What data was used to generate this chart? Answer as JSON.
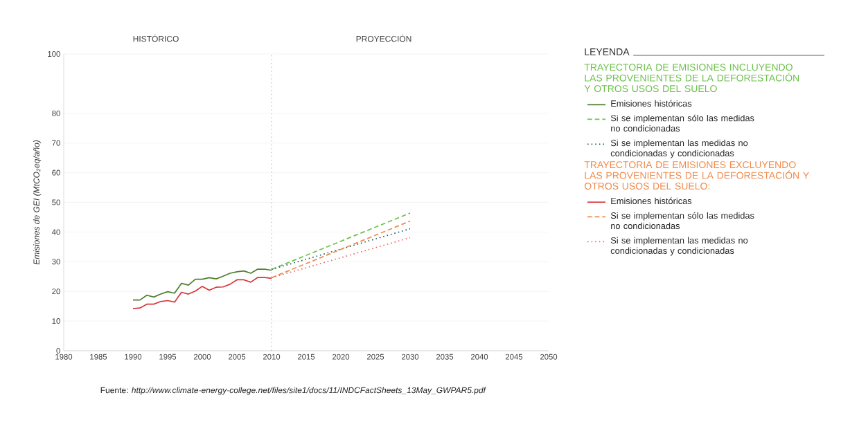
{
  "chart_data": {
    "type": "line",
    "ylabel": "Emisiones de GEI (MtCO$_{2}$eq/año)",
    "legend_title": "LEYENDA",
    "xlim": [
      1980,
      2050
    ],
    "xticks": [
      1980,
      1985,
      1990,
      1995,
      2000,
      2005,
      2010,
      2015,
      2020,
      2025,
      2030,
      2035,
      2040,
      2045,
      2050
    ],
    "ylim": [
      0,
      100
    ],
    "yticks": [
      0,
      10,
      20,
      30,
      40,
      50,
      60,
      70,
      80,
      100
    ],
    "grid": "y",
    "legend": "right",
    "marker": "none",
    "ref_lines": [
      {
        "axis": "x",
        "value": 2010,
        "color": "#8a8a8a",
        "line_style": "dotted"
      }
    ],
    "annotations": [
      "HISTÓRICO",
      "PROYECCIÓN",
      "TRAYECTORIA DE EMISIONES INCLUYENDO LAS PROVENIENTES DE LA DEFORESTACIÓN Y OTROS USOS DEL SUELO",
      "TRAYECTORIA DE EMISIONES EXCLUYENDO LAS PROVENIENTES DE LA DEFORESTACIÓN Y OTROS USOS DEL SUELO:",
      "Fuente: *http://www.climate-energy-college.net/files/site1/docs/11/INDCFactSheets_13May_GWPAR5.pdf*"
    ],
    "series": [
      {
        "name": "Emisiones históricas",
        "color": "#4e7d2c",
        "line_style": "solid",
        "x": [
          1990,
          1991,
          1992,
          1993,
          1994,
          1995,
          1996,
          1997,
          1998,
          1999,
          2000,
          2001,
          2002,
          2003,
          2004,
          2005,
          2006,
          2007,
          2008,
          2009,
          2010
        ],
        "values": [
          17.1,
          17.1,
          18.7,
          18.1,
          19.1,
          19.9,
          19.4,
          22.7,
          22.1,
          24.1,
          24.1,
          24.6,
          24.2,
          25.1,
          26.1,
          26.6,
          26.9,
          26.1,
          27.5,
          27.5,
          27.1
        ]
      },
      {
        "name": "Si se implementan sólo las medidas no condicionadas",
        "color": "#6cc04a",
        "line_style": "dashed",
        "x": [
          2010,
          2030
        ],
        "values": [
          27.4,
          46.4
        ]
      },
      {
        "name": "Si se implementan las medidas no condicionadas y condicionadas",
        "color": "#1f5a66",
        "line_style": "dotted",
        "x": [
          2010,
          2030
        ],
        "values": [
          27.4,
          41.1
        ]
      },
      {
        "name": "Emisiones históricas",
        "color": "#d8343c",
        "line_style": "solid",
        "x": [
          1990,
          1991,
          1992,
          1993,
          1994,
          1995,
          1996,
          1997,
          1998,
          1999,
          2000,
          2001,
          2002,
          2003,
          2004,
          2005,
          2006,
          2007,
          2008,
          2009,
          2010
        ],
        "values": [
          14.2,
          14.4,
          15.7,
          15.7,
          16.6,
          16.9,
          16.4,
          19.7,
          19.1,
          20.1,
          21.7,
          20.4,
          21.4,
          21.5,
          22.4,
          23.9,
          23.9,
          23.1,
          24.7,
          24.7,
          24.4
        ]
      },
      {
        "name": "Si se implementan sólo las medidas no condicionadas",
        "color": "#f08a4b",
        "line_style": "dashed",
        "x": [
          2010,
          2030
        ],
        "values": [
          24.6,
          43.7
        ]
      },
      {
        "name": "Si se implementan las medidas no condicionadas y condicionadas",
        "color": "#ec6464",
        "line_style": "dotted",
        "x": [
          2010,
          2030
        ],
        "values": [
          24.6,
          38.1
        ]
      }
    ]
  }
}
